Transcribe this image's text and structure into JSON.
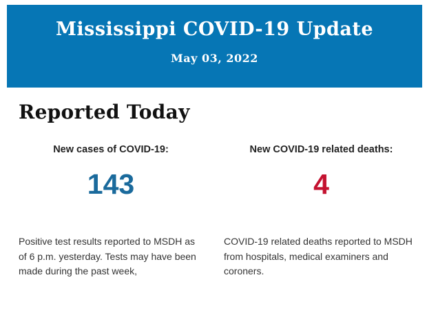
{
  "header": {
    "title": "Mississippi COVID-19 Update",
    "date": "May 03, 2022",
    "background_color": "#0676b5",
    "text_color": "#ffffff"
  },
  "main": {
    "section_title": "Reported Today",
    "stats": [
      {
        "label": "New cases of COVID-19:",
        "value": "143",
        "value_color": "#1a6a9c",
        "description": "Positive test results reported to MSDH as of 6 p.m. yesterday. Tests may have been made during the past week,"
      },
      {
        "label": "New COVID-19 related deaths:",
        "value": "4",
        "value_color": "#c41230",
        "description": "COVID-19 related deaths reported to MSDH from hospitals, medical examiners and coroners."
      }
    ]
  }
}
